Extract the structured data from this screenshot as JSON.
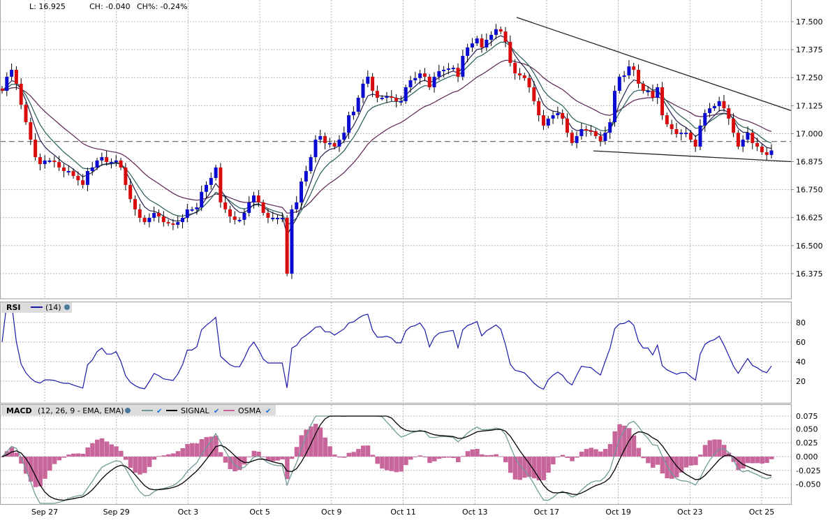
{
  "header": {
    "last": "L: 16.925",
    "change": "CH: -0.040",
    "change_pct": "CH%: -0.24%"
  },
  "colors": {
    "up_candle": "#0a0ad0",
    "down_candle": "#d80c0c",
    "ema_fast": "#23234f",
    "ema_mid": "#255c58",
    "ema_slow": "#5a2352",
    "rsi_line": "#1a1aa8",
    "macd_line": "#6f9a97",
    "signal_line": "#000000",
    "osma_bars": "#c8659a",
    "trendline": "#222222",
    "prev_close_line": "#707070"
  },
  "chart_data": {
    "type": "candlestick",
    "price_axis": {
      "ticks": [
        "17.500",
        "17.375",
        "17.250",
        "17.125",
        "17.000",
        "16.875",
        "16.750",
        "16.625",
        "16.500",
        "16.375"
      ],
      "range": [
        16.263,
        17.597
      ]
    },
    "x_ticks": [
      "Sep 27",
      "Sep 29",
      "Oct 3",
      "Oct 5",
      "Oct 9",
      "Oct 11",
      "Oct 13",
      "Oct 17",
      "Oct 19",
      "Oct 23",
      "Oct 25"
    ],
    "close": [
      17.191,
      17.254,
      17.285,
      17.223,
      17.129,
      17.051,
      16.973,
      16.895,
      16.864,
      16.88,
      16.88,
      16.873,
      16.849,
      16.833,
      16.833,
      16.811,
      16.792,
      16.771,
      16.833,
      16.849,
      16.88,
      16.895,
      16.873,
      16.873,
      16.88,
      16.849,
      16.771,
      16.708,
      16.662,
      16.624,
      16.605,
      16.624,
      16.646,
      16.63,
      16.605,
      16.599,
      16.593,
      16.605,
      16.624,
      16.662,
      16.662,
      16.671,
      16.74,
      16.771,
      16.802,
      16.849,
      16.693,
      16.662,
      16.63,
      16.615,
      16.615,
      16.646,
      16.693,
      16.724,
      16.693,
      16.646,
      16.624,
      16.624,
      16.624,
      16.624,
      16.375,
      16.662,
      16.693,
      16.786,
      16.833,
      16.895,
      16.973,
      16.989,
      16.958,
      16.958,
      16.942,
      16.973,
      17.004,
      17.082,
      17.098,
      17.16,
      17.223,
      17.254,
      17.191,
      17.16,
      17.16,
      17.166,
      17.16,
      17.145,
      17.145,
      17.207,
      17.238,
      17.248,
      17.269,
      17.254,
      17.207,
      17.254,
      17.279,
      17.285,
      17.291,
      17.294,
      17.254,
      17.347,
      17.385,
      17.403,
      17.425,
      17.385,
      17.419,
      17.441,
      17.466,
      17.456,
      17.41,
      17.316,
      17.269,
      17.26,
      17.248,
      17.207,
      17.145,
      17.082,
      17.036,
      17.067,
      17.082,
      17.092,
      17.067,
      17.004,
      16.958,
      16.989,
      17.02,
      17.014,
      17.011,
      16.989,
      16.967,
      17.004,
      17.051,
      17.191,
      17.254,
      17.26,
      17.3,
      17.285,
      17.223,
      17.191,
      17.191,
      17.16,
      17.207,
      17.082,
      17.042,
      17.02,
      16.998,
      17.004,
      17.004,
      16.973,
      16.942,
      17.036,
      17.092,
      17.113,
      17.123,
      17.145,
      17.113,
      17.067,
      17.004,
      16.942,
      16.973,
      17.004,
      16.958,
      16.942,
      16.917,
      16.905,
      16.925
    ],
    "prev_close_line": 16.965,
    "trendlines": [
      {
        "from_price": 17.519,
        "to_price": 17.103
      },
      {
        "from_price": 16.923,
        "to_price": 16.875
      }
    ],
    "grid": true,
    "rsi": {
      "label": "RSI",
      "params": "(14)",
      "ticks": [
        "80",
        "60",
        "40",
        "20"
      ],
      "range": [
        0,
        100
      ]
    },
    "macd": {
      "label": "MACD",
      "params": "(12, 26, 9 - EMA, EMA)",
      "signal_label": "SIGNAL",
      "osma_label": "OSMA",
      "ticks": [
        "0.075",
        "0.050",
        "0.025",
        "0.000",
        "-0.025",
        "-0.050"
      ],
      "range": [
        -0.086,
        0.09
      ]
    }
  }
}
